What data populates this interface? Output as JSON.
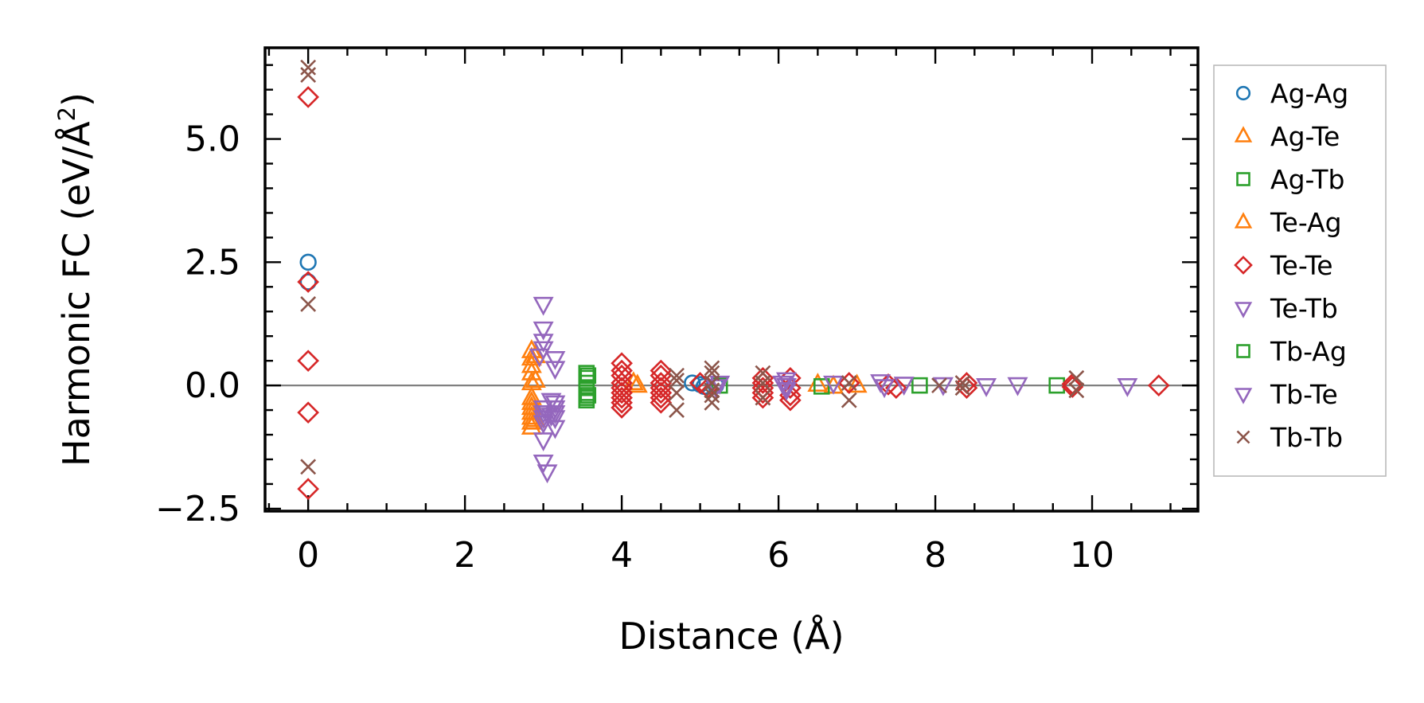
{
  "chart_data": {
    "type": "scatter",
    "title": "",
    "xlabel": "Distance (Å)",
    "ylabel": "Harmonic FC (eV/Å²)",
    "ylabel_parts": {
      "main": "Harmonic FC (eV/Å",
      "sup": "2",
      "close": ")"
    },
    "xlim": [
      -0.55,
      11.35
    ],
    "ylim": [
      -2.55,
      6.85
    ],
    "xticks": [
      0,
      2,
      4,
      6,
      8,
      10
    ],
    "xtick_labels": [
      "0",
      "2",
      "4",
      "6",
      "8",
      "10"
    ],
    "yticks": [
      -2.5,
      0.0,
      2.5,
      5.0
    ],
    "ytick_labels": [
      "−2.5",
      "0.0",
      "2.5",
      "5.0"
    ],
    "reference_line_y": 0,
    "legend_position": "outside-right",
    "series": [
      {
        "name": "Ag-Ag",
        "marker": "circle",
        "color": "#1f77b4",
        "x": [
          0,
          0,
          4.9,
          5.0,
          5.05,
          5.2
        ],
        "y": [
          2.5,
          2.1,
          0.05,
          0.02,
          -0.02,
          0.0
        ]
      },
      {
        "name": "Ag-Te",
        "marker": "triangle-up",
        "color": "#ff7f0e",
        "x": [
          2.85,
          2.85,
          2.85,
          2.85,
          2.85,
          2.85,
          2.85,
          2.85,
          2.85,
          2.85,
          2.85,
          2.85,
          4.2,
          6.5,
          6.7,
          7.0
        ],
        "y": [
          0.7,
          0.55,
          0.4,
          0.25,
          0.05,
          -0.25,
          -0.45,
          -0.55,
          -0.65,
          -0.75,
          -0.85,
          -0.35,
          0.0,
          0.02,
          -0.02,
          0.0
        ]
      },
      {
        "name": "Ag-Tb",
        "marker": "square",
        "color": "#2ca02c",
        "x": [
          3.55,
          3.55,
          3.55,
          3.55,
          3.55,
          3.55,
          3.55,
          5.25,
          6.55,
          7.8,
          9.55
        ],
        "y": [
          0.25,
          0.15,
          0.05,
          -0.05,
          -0.15,
          -0.25,
          -0.3,
          0.0,
          -0.02,
          0.0,
          0.0
        ]
      },
      {
        "name": "Te-Ag",
        "marker": "triangle-up",
        "color": "#ff7f0e",
        "x": [
          2.9,
          2.9,
          2.9,
          4.15
        ],
        "y": [
          0.6,
          -0.7,
          0.1,
          0.05
        ]
      },
      {
        "name": "Te-Te",
        "marker": "diamond",
        "color": "#d62728",
        "x": [
          0,
          0,
          0,
          0,
          0,
          4.0,
          4.0,
          4.0,
          4.0,
          4.0,
          4.0,
          4.0,
          4.0,
          4.0,
          4.5,
          4.5,
          4.5,
          4.5,
          4.5,
          4.5,
          4.5,
          5.0,
          5.1,
          5.8,
          5.8,
          5.8,
          5.8,
          5.8,
          6.15,
          6.15,
          6.15,
          6.15,
          6.9,
          7.4,
          7.5,
          8.4,
          8.4,
          9.75,
          9.75,
          10.85
        ],
        "y": [
          5.85,
          2.1,
          0.5,
          -0.55,
          -2.1,
          0.45,
          0.3,
          0.2,
          0.05,
          -0.05,
          -0.15,
          -0.25,
          -0.35,
          -0.45,
          0.3,
          0.2,
          0.05,
          -0.05,
          -0.15,
          -0.25,
          -0.35,
          0.05,
          -0.05,
          0.15,
          0.05,
          -0.05,
          -0.15,
          -0.25,
          0.15,
          -0.05,
          -0.2,
          -0.3,
          0.05,
          0.02,
          -0.05,
          0.05,
          -0.05,
          0.03,
          -0.03,
          0.0
        ]
      },
      {
        "name": "Te-Tb",
        "marker": "triangle-down",
        "color": "#9467bd",
        "x": [
          3.0,
          3.0,
          3.0,
          3.0,
          3.0,
          3.0,
          3.0,
          3.0,
          3.0,
          3.0,
          3.15,
          3.15,
          3.15,
          3.15,
          3.15,
          3.15,
          3.15,
          3.05,
          3.05,
          5.25,
          6.1,
          6.1,
          6.1,
          6.7,
          7.3,
          7.6,
          8.1,
          8.65,
          9.05,
          10.45
        ],
        "y": [
          1.65,
          1.15,
          0.9,
          0.75,
          -0.45,
          -0.55,
          -0.65,
          -0.75,
          -1.1,
          -1.55,
          0.55,
          0.35,
          -0.35,
          -0.45,
          -0.55,
          -0.65,
          -0.85,
          -1.75,
          -0.55,
          0.05,
          0.12,
          0.0,
          -0.08,
          0.05,
          0.08,
          0.03,
          0.02,
          0.0,
          0.02,
          0.0
        ]
      },
      {
        "name": "Tb-Ag",
        "marker": "square",
        "color": "#2ca02c",
        "x": [
          3.57,
          3.57
        ],
        "y": [
          0.2,
          -0.2
        ]
      },
      {
        "name": "Tb-Te",
        "marker": "triangle-down",
        "color": "#9467bd",
        "x": [
          2.95,
          3.1,
          3.1,
          5.2,
          6.05,
          7.35
        ],
        "y": [
          0.6,
          -0.3,
          -0.6,
          -0.02,
          0.05,
          -0.02
        ]
      },
      {
        "name": "Tb-Tb",
        "marker": "x",
        "color": "#8c564b",
        "x": [
          0,
          0,
          0,
          0,
          4.7,
          4.7,
          4.7,
          4.7,
          5.15,
          5.15,
          5.15,
          5.15,
          5.15,
          5.15,
          5.8,
          5.8,
          5.8,
          6.9,
          6.9,
          8.05,
          8.35,
          8.35,
          9.8,
          9.8
        ],
        "y": [
          6.45,
          6.3,
          1.65,
          -1.65,
          0.2,
          0.1,
          -0.15,
          -0.5,
          0.35,
          0.25,
          0.05,
          -0.1,
          -0.2,
          -0.35,
          0.25,
          0.05,
          -0.25,
          0.05,
          -0.3,
          0.0,
          0.05,
          -0.05,
          0.15,
          -0.1
        ]
      }
    ]
  }
}
